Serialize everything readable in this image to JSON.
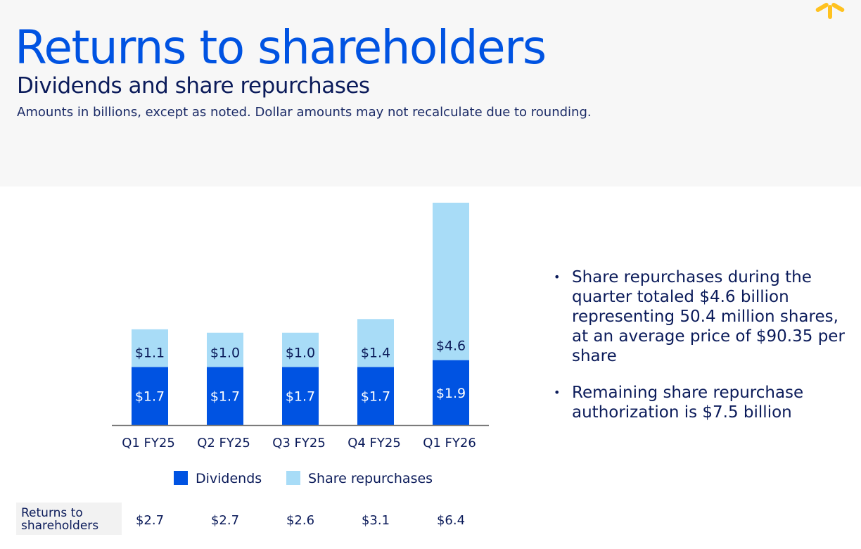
{
  "title": "Returns to shareholders",
  "subtitle": "Dividends and share repurchases",
  "note": "Amounts in billions, except as noted. Dollar amounts may not recalculate due to rounding.",
  "colors": {
    "accent": "#0053e2",
    "dividends": "#0053e2",
    "repurchases": "#a8dcf7",
    "logo": "#ffc220"
  },
  "logo_icon": "spark-icon",
  "chart_data": {
    "type": "bar",
    "stacked": true,
    "categories": [
      "Q1 FY25",
      "Q2 FY25",
      "Q3 FY25",
      "Q4 FY25",
      "Q1 FY26"
    ],
    "series": [
      {
        "name": "Dividends",
        "values": [
          1.7,
          1.7,
          1.7,
          1.7,
          1.9
        ],
        "labels": [
          "$1.7",
          "$1.7",
          "$1.7",
          "$1.7",
          "$1.9"
        ]
      },
      {
        "name": "Share repurchases",
        "values": [
          1.1,
          1.0,
          1.0,
          1.4,
          4.6
        ],
        "labels": [
          "$1.1",
          "$1.0",
          "$1.0",
          "$1.4",
          "$4.6"
        ]
      }
    ],
    "ylim": [
      0,
      7
    ],
    "legend_position": "bottom",
    "grid": false
  },
  "totals": {
    "label": "Returns to shareholders",
    "values": [
      "$2.7",
      "$2.7",
      "$2.6",
      "$3.1",
      "$6.4"
    ]
  },
  "bullets": [
    "Share repurchases during the quarter totaled $4.6 billion representing 50.4 million shares, at an average price of $90.35 per share",
    "Remaining share repurchase authorization is $7.5 billion"
  ]
}
